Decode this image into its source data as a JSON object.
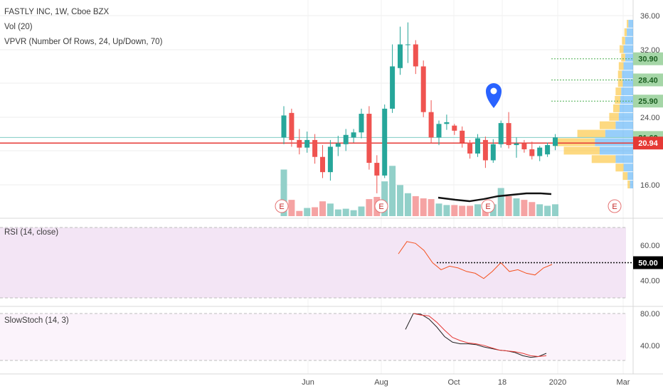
{
  "legend": {
    "main": "FASTLY INC, 1W, Cboe BZX",
    "vol": "Vol (20)",
    "vpvr": "VPVR (Number Of Rows, 24, Up/Down, 70)",
    "rsi": "RSI (14, close)",
    "stoch": "SlowStoch (14, 3)"
  },
  "colors": {
    "up": "#26a69a",
    "down": "#ef5350",
    "up_vol": "#92d0c9",
    "down_vol": "#f5a3a3",
    "vpvr_up": "#42a5f5",
    "vpvr_down": "#fbc02d",
    "target_line": "#4caf50",
    "target_tag": "#a5d6a7",
    "price_line": "#e53935",
    "rsi_line": "#f4511e",
    "rsi_band": "#f3e5f5",
    "stoch_k": "#222222",
    "stoch_d": "#e53935"
  },
  "chart_data": [
    {
      "type": "candlestick",
      "title": "FASTLY INC, 1W, Cboe BZX",
      "x_ticks": [
        "Jun",
        "Aug",
        "Oct",
        "18",
        "2020",
        "Mar"
      ],
      "y_ticks": [
        "36.00",
        "32.00",
        "24.00",
        "16.00"
      ],
      "ylim": [
        12,
        37
      ],
      "candles": [
        {
          "o": 21.6,
          "h": 25.3,
          "l": 20.8,
          "c": 24.2
        },
        {
          "o": 24.5,
          "h": 25.0,
          "l": 20.5,
          "c": 21.3
        },
        {
          "o": 21.3,
          "h": 22.6,
          "l": 19.6,
          "c": 20.4
        },
        {
          "o": 20.4,
          "h": 22.3,
          "l": 19.8,
          "c": 21.3
        },
        {
          "o": 21.3,
          "h": 22.0,
          "l": 18.5,
          "c": 19.3
        },
        {
          "o": 19.3,
          "h": 20.7,
          "l": 16.8,
          "c": 17.5
        },
        {
          "o": 17.5,
          "h": 21.3,
          "l": 16.5,
          "c": 20.5
        },
        {
          "o": 20.5,
          "h": 21.8,
          "l": 19.4,
          "c": 20.9
        },
        {
          "o": 20.8,
          "h": 22.6,
          "l": 20.0,
          "c": 21.9
        },
        {
          "o": 21.6,
          "h": 22.6,
          "l": 21.0,
          "c": 22.2
        },
        {
          "o": 22.2,
          "h": 25.0,
          "l": 21.5,
          "c": 24.4
        },
        {
          "o": 24.4,
          "h": 25.3,
          "l": 17.8,
          "c": 18.6
        },
        {
          "o": 18.6,
          "h": 19.5,
          "l": 15.0,
          "c": 17.1
        },
        {
          "o": 17.1,
          "h": 25.5,
          "l": 16.8,
          "c": 25.0
        },
        {
          "o": 25.0,
          "h": 32.6,
          "l": 24.5,
          "c": 30.0
        },
        {
          "o": 29.8,
          "h": 34.7,
          "l": 29.0,
          "c": 32.6
        },
        {
          "o": 32.6,
          "h": 35.2,
          "l": 30.4,
          "c": 32.6
        },
        {
          "o": 32.6,
          "h": 33.1,
          "l": 29.1,
          "c": 30.0
        },
        {
          "o": 30.0,
          "h": 30.7,
          "l": 24.0,
          "c": 24.6
        },
        {
          "o": 24.6,
          "h": 26.0,
          "l": 20.9,
          "c": 21.6
        },
        {
          "o": 21.6,
          "h": 23.6,
          "l": 20.7,
          "c": 23.2
        },
        {
          "o": 23.2,
          "h": 24.3,
          "l": 22.5,
          "c": 23.4
        },
        {
          "o": 23.0,
          "h": 23.2,
          "l": 21.9,
          "c": 22.4
        },
        {
          "o": 22.4,
          "h": 22.9,
          "l": 20.4,
          "c": 21.0
        },
        {
          "o": 21.0,
          "h": 21.3,
          "l": 19.1,
          "c": 19.7
        },
        {
          "o": 19.7,
          "h": 22.0,
          "l": 19.3,
          "c": 21.5
        },
        {
          "o": 21.3,
          "h": 21.7,
          "l": 18.0,
          "c": 18.9
        },
        {
          "o": 18.9,
          "h": 21.4,
          "l": 18.6,
          "c": 20.8
        },
        {
          "o": 20.8,
          "h": 23.6,
          "l": 20.4,
          "c": 23.3
        },
        {
          "o": 23.3,
          "h": 24.6,
          "l": 20.3,
          "c": 20.7
        },
        {
          "o": 20.7,
          "h": 21.6,
          "l": 19.2,
          "c": 20.9
        },
        {
          "o": 20.9,
          "h": 21.3,
          "l": 19.8,
          "c": 20.2
        },
        {
          "o": 20.2,
          "h": 21.1,
          "l": 19.0,
          "c": 19.4
        },
        {
          "o": 19.4,
          "h": 20.6,
          "l": 18.8,
          "c": 20.4
        },
        {
          "o": 19.6,
          "h": 21.0,
          "l": 19.3,
          "c": 20.7
        },
        {
          "o": 20.6,
          "h": 22.0,
          "l": 20.1,
          "c": 21.6
        }
      ],
      "volume_rel": [
        0.63,
        0.22,
        0.07,
        0.11,
        0.12,
        0.2,
        0.17,
        0.09,
        0.1,
        0.08,
        0.13,
        0.23,
        0.26,
        0.47,
        0.68,
        0.42,
        0.31,
        0.27,
        0.24,
        0.23,
        0.17,
        0.15,
        0.15,
        0.14,
        0.14,
        0.16,
        0.14,
        0.16,
        0.38,
        0.27,
        0.24,
        0.22,
        0.19,
        0.16,
        0.14,
        0.16
      ],
      "target_levels": [
        "30.90",
        "28.40",
        "25.90"
      ],
      "last_price_tag": "21.60",
      "current_price_tag": "20.94",
      "earnings_marker": "E",
      "vpvr_rows": [
        {
          "price": 35.0,
          "up": 0.06,
          "down": 0.02
        },
        {
          "price": 34.0,
          "up": 0.08,
          "down": 0.03
        },
        {
          "price": 33.0,
          "up": 0.1,
          "down": 0.04
        },
        {
          "price": 32.0,
          "up": 0.12,
          "down": 0.05
        },
        {
          "price": 31.0,
          "up": 0.1,
          "down": 0.05
        },
        {
          "price": 30.0,
          "up": 0.12,
          "down": 0.06
        },
        {
          "price": 29.0,
          "up": 0.14,
          "down": 0.05
        },
        {
          "price": 28.0,
          "up": 0.13,
          "down": 0.06
        },
        {
          "price": 27.0,
          "up": 0.15,
          "down": 0.07
        },
        {
          "price": 26.0,
          "up": 0.16,
          "down": 0.07
        },
        {
          "price": 25.0,
          "up": 0.17,
          "down": 0.08
        },
        {
          "price": 24.0,
          "up": 0.18,
          "down": 0.12
        },
        {
          "price": 23.0,
          "up": 0.22,
          "down": 0.2
        },
        {
          "price": 22.0,
          "up": 0.35,
          "down": 0.35
        },
        {
          "price": 21.0,
          "up": 0.48,
          "down": 0.52
        },
        {
          "price": 20.0,
          "up": 0.42,
          "down": 0.45
        },
        {
          "price": 19.0,
          "up": 0.22,
          "down": 0.3
        },
        {
          "price": 18.0,
          "up": 0.12,
          "down": 0.1
        },
        {
          "price": 17.0,
          "up": 0.07,
          "down": 0.06
        },
        {
          "price": 16.0,
          "up": 0.04,
          "down": 0.03
        }
      ]
    },
    {
      "type": "line",
      "title": "RSI (14, close)",
      "y_ticks": [
        "60.00",
        "40.00"
      ],
      "current_tag": "50.00",
      "ylim": [
        30,
        70
      ],
      "values": [
        55,
        62,
        61,
        57,
        50,
        46,
        48,
        47,
        45,
        44,
        41,
        45,
        50,
        45,
        46,
        44,
        43,
        47,
        49
      ]
    },
    {
      "type": "line",
      "title": "SlowStoch (14, 3)",
      "y_ticks": [
        "80.00",
        "40.00"
      ],
      "ylim": [
        20,
        88
      ],
      "series": [
        {
          "values": [
            60,
            80,
            79,
            73,
            63,
            51,
            44,
            42,
            42,
            41,
            38,
            36,
            34,
            33,
            31,
            27,
            25,
            26,
            30
          ]
        },
        {
          "values": [
            null,
            80,
            78,
            77,
            69,
            59,
            50,
            46,
            43,
            42,
            40,
            37,
            34,
            33,
            32,
            30,
            27,
            26,
            27
          ]
        }
      ]
    }
  ]
}
